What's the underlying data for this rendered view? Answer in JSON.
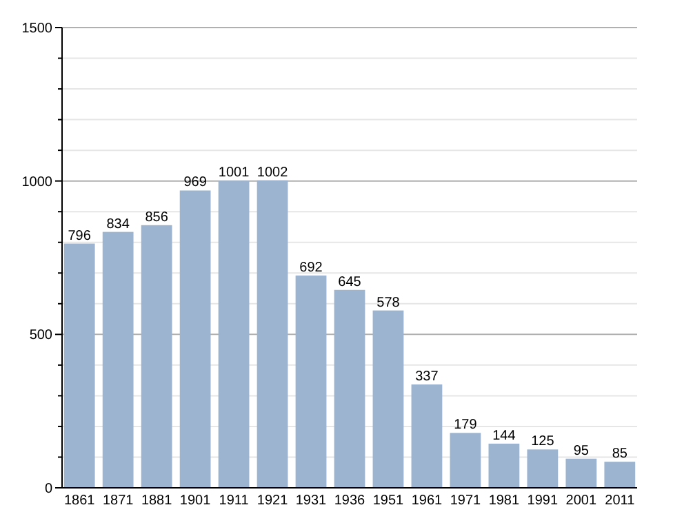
{
  "chart_data": {
    "type": "bar",
    "categories": [
      "1861",
      "1871",
      "1881",
      "1901",
      "1911",
      "1921",
      "1931",
      "1936",
      "1951",
      "1961",
      "1971",
      "1981",
      "1991",
      "2001",
      "2011"
    ],
    "values": [
      796,
      834,
      856,
      969,
      1001,
      1002,
      692,
      645,
      578,
      337,
      179,
      144,
      125,
      95,
      85
    ],
    "color": "#9cb4cf",
    "ylim": [
      0,
      1500
    ],
    "yticks": [
      0,
      {
        "value": 100,
        "label": null
      },
      {
        "value": 200,
        "label": null
      },
      {
        "value": 300,
        "label": null
      },
      {
        "value": 400,
        "label": null
      },
      500,
      {
        "value": 600,
        "label": null
      },
      {
        "value": 700,
        "label": null
      },
      {
        "value": 800,
        "label": null
      },
      {
        "value": 900,
        "label": null
      },
      1000,
      {
        "value": 1100,
        "label": null
      },
      {
        "value": 1200,
        "label": null
      },
      {
        "value": 1300,
        "label": null
      },
      {
        "value": 1400,
        "label": null
      },
      1500
    ],
    "grid": true,
    "data_labels": true
  }
}
